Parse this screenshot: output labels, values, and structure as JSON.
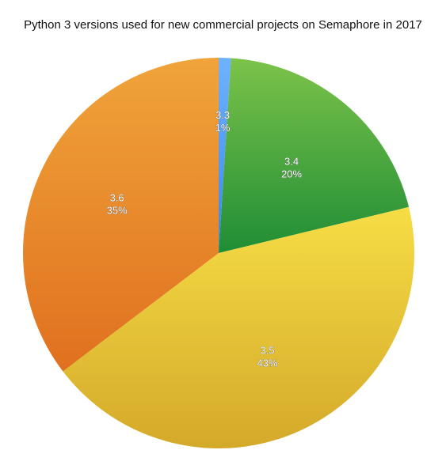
{
  "chart_data": {
    "type": "pie",
    "title": "Python 3 versions used for new commercial projects on Semaphore in 2017",
    "slices": [
      {
        "label": "3.3",
        "percent_label": "1%",
        "value": 1,
        "color_light": "#6fb3ff",
        "color_dark": "#3a86e8"
      },
      {
        "label": "3.4",
        "percent_label": "20%",
        "value": 20,
        "color_light": "#7cc34a",
        "color_dark": "#1f8d35"
      },
      {
        "label": "3.5",
        "percent_label": "43%",
        "value": 43,
        "color_light": "#f6dd45",
        "color_dark": "#d4a92a"
      },
      {
        "label": "3.6",
        "percent_label": "35%",
        "value": 35,
        "color_light": "#f0a43a",
        "color_dark": "#e0701f"
      }
    ]
  }
}
